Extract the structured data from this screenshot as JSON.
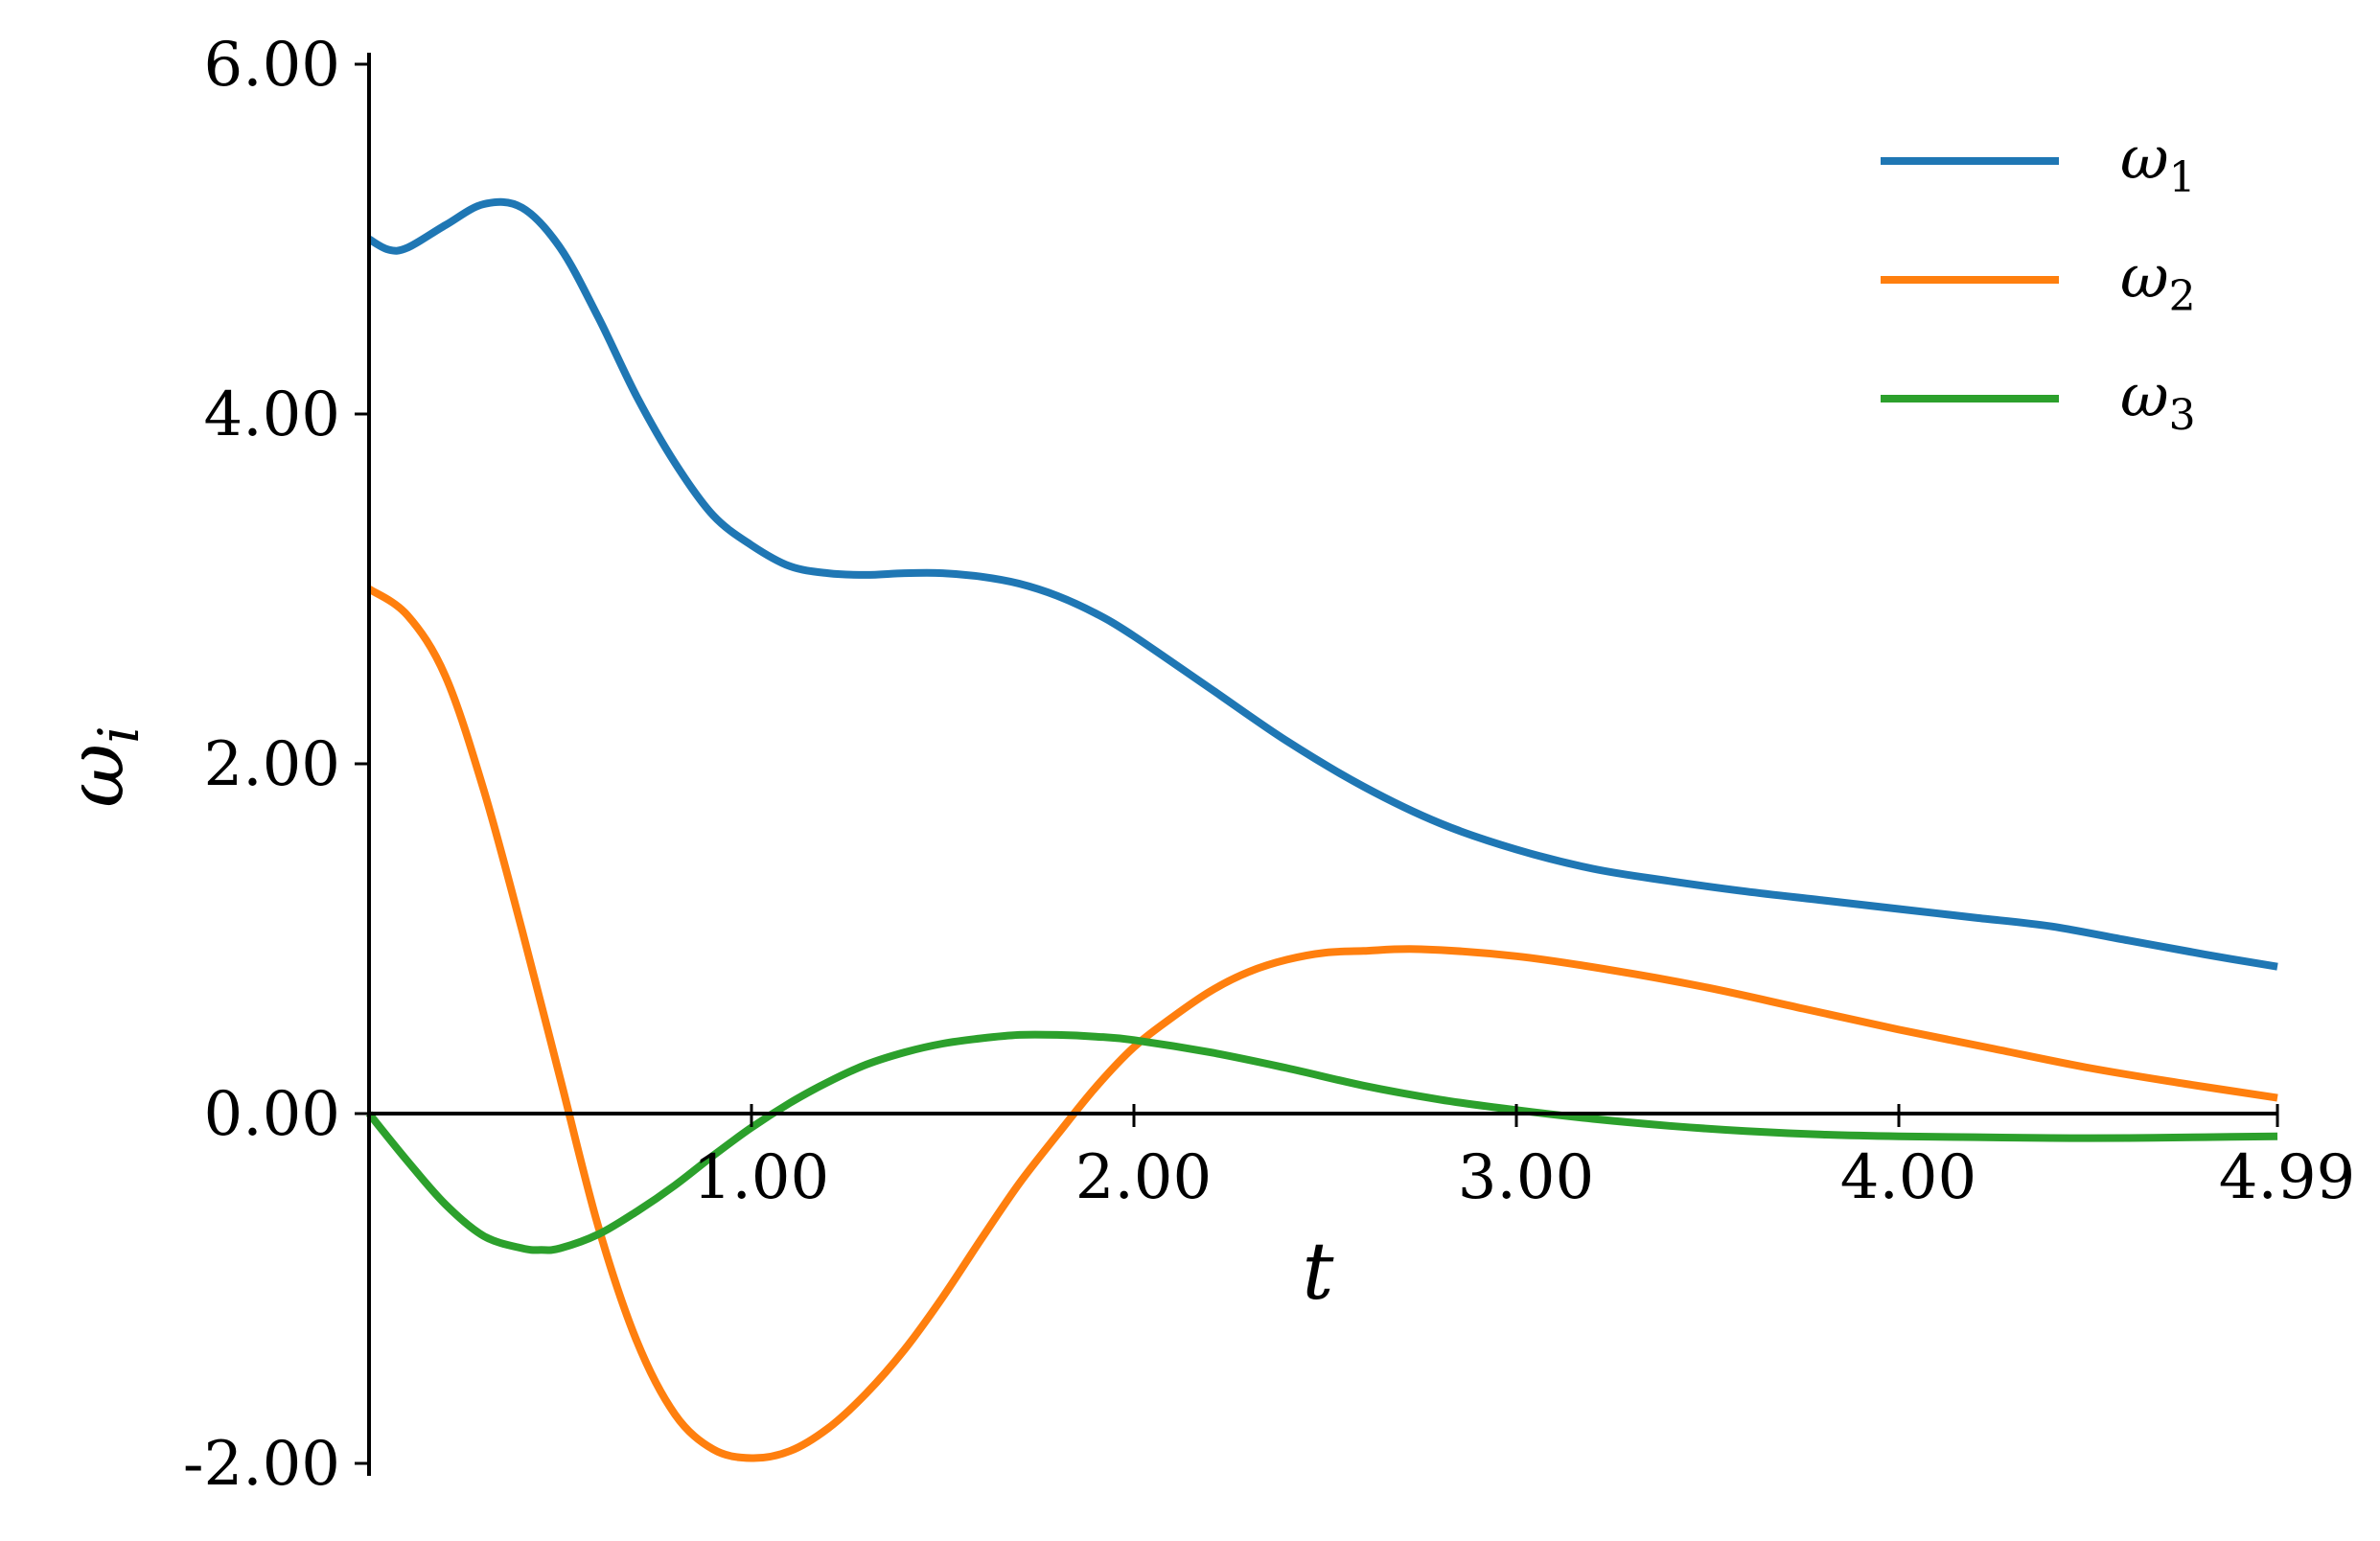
{
  "chart_data": {
    "type": "line",
    "xlabel": "t",
    "ylabel": "ω",
    "ylabel_sub": "i",
    "xlim": [
      0,
      4.99
    ],
    "ylim": [
      -2.0,
      6.0
    ],
    "xticks": [
      1.0,
      2.0,
      3.0,
      4.0,
      4.99
    ],
    "xtick_labels": [
      "1.00",
      "2.00",
      "3.00",
      "4.00",
      "4.99"
    ],
    "yticks": [
      -2.0,
      0.0,
      2.0,
      4.0,
      6.0
    ],
    "ytick_labels": [
      "-2.00",
      "0.00",
      "2.00",
      "4.00",
      "6.00"
    ],
    "grid": false,
    "legend_position": "top-right",
    "series": [
      {
        "name": "ω",
        "sub": "1",
        "color": "#1f77b4",
        "x": [
          0,
          0.05,
          0.1,
          0.2,
          0.3,
          0.4,
          0.5,
          0.6,
          0.7,
          0.8,
          0.9,
          1.0,
          1.1,
          1.2,
          1.3,
          1.4,
          1.5,
          1.6,
          1.7,
          1.8,
          1.9,
          2.0,
          2.2,
          2.4,
          2.6,
          2.8,
          3.0,
          3.2,
          3.4,
          3.6,
          3.8,
          4.0,
          4.2,
          4.4,
          4.6,
          4.8,
          4.99
        ],
        "y": [
          5.0,
          4.94,
          4.95,
          5.08,
          5.2,
          5.18,
          4.95,
          4.55,
          4.1,
          3.72,
          3.42,
          3.25,
          3.13,
          3.09,
          3.08,
          3.09,
          3.09,
          3.07,
          3.03,
          2.96,
          2.86,
          2.73,
          2.43,
          2.13,
          1.87,
          1.66,
          1.51,
          1.4,
          1.33,
          1.27,
          1.22,
          1.17,
          1.12,
          1.07,
          0.99,
          0.91,
          0.84
        ]
      },
      {
        "name": "ω",
        "sub": "2",
        "color": "#ff7f0e",
        "x": [
          0,
          0.1,
          0.2,
          0.3,
          0.4,
          0.5,
          0.6,
          0.7,
          0.8,
          0.9,
          1.0,
          1.1,
          1.2,
          1.3,
          1.4,
          1.5,
          1.6,
          1.7,
          1.8,
          1.9,
          2.0,
          2.1,
          2.2,
          2.3,
          2.4,
          2.5,
          2.6,
          2.75,
          3.0,
          3.25,
          3.5,
          3.75,
          4.0,
          4.25,
          4.5,
          4.75,
          4.99
        ],
        "y": [
          3.0,
          2.85,
          2.5,
          1.85,
          1.05,
          0.2,
          -0.65,
          -1.3,
          -1.72,
          -1.92,
          -1.97,
          -1.93,
          -1.8,
          -1.6,
          -1.35,
          -1.05,
          -0.72,
          -0.4,
          -0.12,
          0.15,
          0.38,
          0.55,
          0.7,
          0.81,
          0.88,
          0.92,
          0.93,
          0.94,
          0.9,
          0.82,
          0.72,
          0.6,
          0.48,
          0.37,
          0.26,
          0.17,
          0.09
        ]
      },
      {
        "name": "ω",
        "sub": "3",
        "color": "#2ca02c",
        "x": [
          0,
          0.1,
          0.2,
          0.3,
          0.4,
          0.45,
          0.5,
          0.6,
          0.7,
          0.8,
          0.9,
          1.0,
          1.1,
          1.2,
          1.3,
          1.4,
          1.5,
          1.6,
          1.7,
          1.8,
          1.9,
          2.0,
          2.2,
          2.4,
          2.6,
          2.8,
          3.0,
          3.2,
          3.4,
          3.6,
          3.8,
          4.0,
          4.2,
          4.4,
          4.6,
          4.8,
          4.99
        ],
        "y": [
          0.0,
          -0.27,
          -0.52,
          -0.7,
          -0.77,
          -0.78,
          -0.77,
          -0.69,
          -0.56,
          -0.41,
          -0.24,
          -0.08,
          0.06,
          0.18,
          0.28,
          0.35,
          0.4,
          0.43,
          0.45,
          0.45,
          0.44,
          0.42,
          0.35,
          0.26,
          0.16,
          0.08,
          0.02,
          -0.03,
          -0.07,
          -0.1,
          -0.12,
          -0.13,
          -0.135,
          -0.14,
          -0.14,
          -0.135,
          -0.13
        ]
      }
    ]
  }
}
